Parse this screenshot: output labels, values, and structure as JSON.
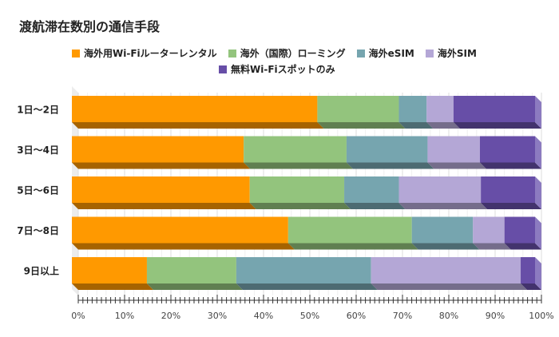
{
  "chart_data": {
    "type": "bar",
    "orientation": "horizontal",
    "stacked": "percent",
    "title": "渡航滞在数別の通信手段",
    "categories": [
      "1日～2日",
      "3日～4日",
      "5日～6日",
      "7日～8日",
      "9日以上"
    ],
    "series": [
      {
        "name": "海外用Wi-Fiルーターレンタル",
        "color": "#FF9900",
        "values": [
          53.0,
          37.1,
          38.4,
          46.7,
          16.2
        ]
      },
      {
        "name": "海外（国際）ローミング",
        "color": "#93C47D",
        "values": [
          17.6,
          22.2,
          20.4,
          26.7,
          19.3
        ]
      },
      {
        "name": "海外eSIM",
        "color": "#76A5AF",
        "values": [
          6.0,
          17.5,
          11.8,
          13.2,
          29.1
        ]
      },
      {
        "name": "海外SIM",
        "color": "#B4A7D6",
        "values": [
          5.8,
          11.3,
          17.7,
          6.8,
          32.3
        ]
      },
      {
        "name": "無料Wi-Fiスポットのみ",
        "color": "#674EA7",
        "values": [
          17.6,
          11.9,
          11.7,
          6.6,
          3.1
        ]
      }
    ],
    "xlim": [
      0,
      100
    ],
    "x_ticks": [
      "0%",
      "10%",
      "20%",
      "30%",
      "40%",
      "50%",
      "60%",
      "70%",
      "80%",
      "90%",
      "100%"
    ],
    "grid": true,
    "legend_position": "top",
    "style": "3d"
  }
}
